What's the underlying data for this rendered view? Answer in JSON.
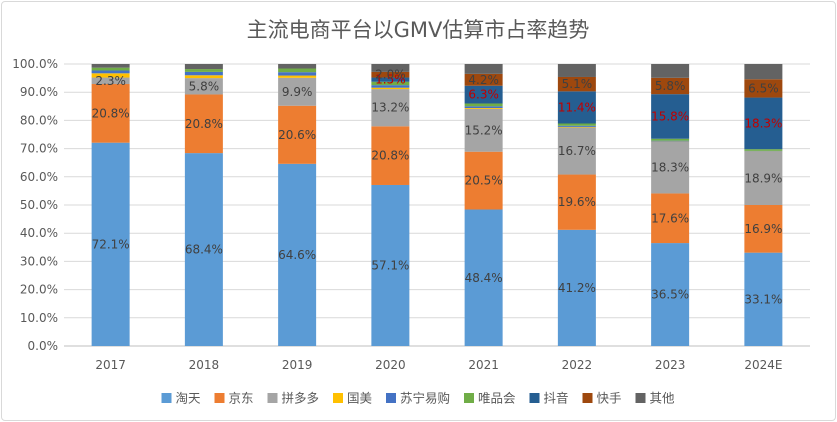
{
  "chart_data": {
    "type": "bar",
    "stacked": true,
    "title": "主流电商平台以GMV估算市占率趋势",
    "xlabel": "",
    "ylabel": "",
    "ylim": [
      0,
      100
    ],
    "y_ticks": [
      "0.0%",
      "10.0%",
      "20.0%",
      "30.0%",
      "40.0%",
      "50.0%",
      "60.0%",
      "70.0%",
      "80.0%",
      "90.0%",
      "100.0%"
    ],
    "grid": true,
    "legend_position": "bottom",
    "categories": [
      "2017",
      "2018",
      "2019",
      "2020",
      "2021",
      "2022",
      "2023",
      "2024E"
    ],
    "series": [
      {
        "name": "淘天",
        "color": "#5b9bd5",
        "values": [
          72.1,
          68.4,
          64.6,
          57.1,
          48.4,
          41.2,
          36.5,
          33.1
        ],
        "labels": [
          "72.1%",
          "68.4%",
          "64.6%",
          "57.1%",
          "48.4%",
          "41.2%",
          "36.5%",
          "33.1%"
        ],
        "label_color": "#404040"
      },
      {
        "name": "京东",
        "color": "#ed7d31",
        "values": [
          20.8,
          20.8,
          20.6,
          20.8,
          20.5,
          19.6,
          17.6,
          16.9
        ],
        "labels": [
          "20.8%",
          "20.8%",
          "20.6%",
          "20.8%",
          "20.5%",
          "19.6%",
          "17.6%",
          "16.9%"
        ],
        "label_color": "#404040"
      },
      {
        "name": "拼多多",
        "color": "#a5a5a5",
        "values": [
          2.3,
          5.8,
          9.9,
          13.2,
          15.2,
          16.7,
          18.3,
          18.9
        ],
        "labels": [
          "2.3%",
          "5.8%",
          "9.9%",
          "13.2%",
          "15.2%",
          "16.7%",
          "18.3%",
          "18.9%"
        ],
        "label_color": "#404040"
      },
      {
        "name": "国美",
        "color": "#ffc000",
        "values": [
          1.5,
          1.0,
          0.8,
          0.5,
          0.3,
          0.2,
          0.1,
          0.1
        ],
        "labels": [],
        "label_color": "#404040"
      },
      {
        "name": "苏宁易购",
        "color": "#4472c4",
        "values": [
          1.0,
          1.2,
          1.2,
          0.9,
          0.6,
          0.4,
          0.3,
          0.2
        ],
        "labels": [],
        "label_color": "#404040"
      },
      {
        "name": "唯品会",
        "color": "#70ad47",
        "values": [
          1.0,
          1.0,
          1.3,
          1.2,
          1.0,
          0.8,
          0.7,
          0.6
        ],
        "labels": [],
        "label_color": "#404040"
      },
      {
        "name": "抖音",
        "color": "#255e91",
        "values": [
          0,
          0,
          0,
          1.5,
          6.3,
          11.4,
          15.8,
          18.3
        ],
        "labels": [
          "",
          "",
          "",
          "1.5%",
          "6.3%",
          "11.4%",
          "15.8%",
          "18.3%"
        ],
        "label_color": "#c00000"
      },
      {
        "name": "快手",
        "color": "#9e480e",
        "values": [
          0,
          0,
          0,
          2.0,
          4.2,
          5.1,
          5.8,
          6.5
        ],
        "labels": [
          "",
          "",
          "",
          "2.0%",
          "4.2%",
          "5.1%",
          "5.8%",
          "6.5%"
        ],
        "label_color": "#404040"
      },
      {
        "name": "其他",
        "color": "#636363",
        "values": [
          1.3,
          1.8,
          1.6,
          2.8,
          3.5,
          4.6,
          4.9,
          5.4
        ],
        "labels": [],
        "label_color": "#404040"
      }
    ]
  }
}
